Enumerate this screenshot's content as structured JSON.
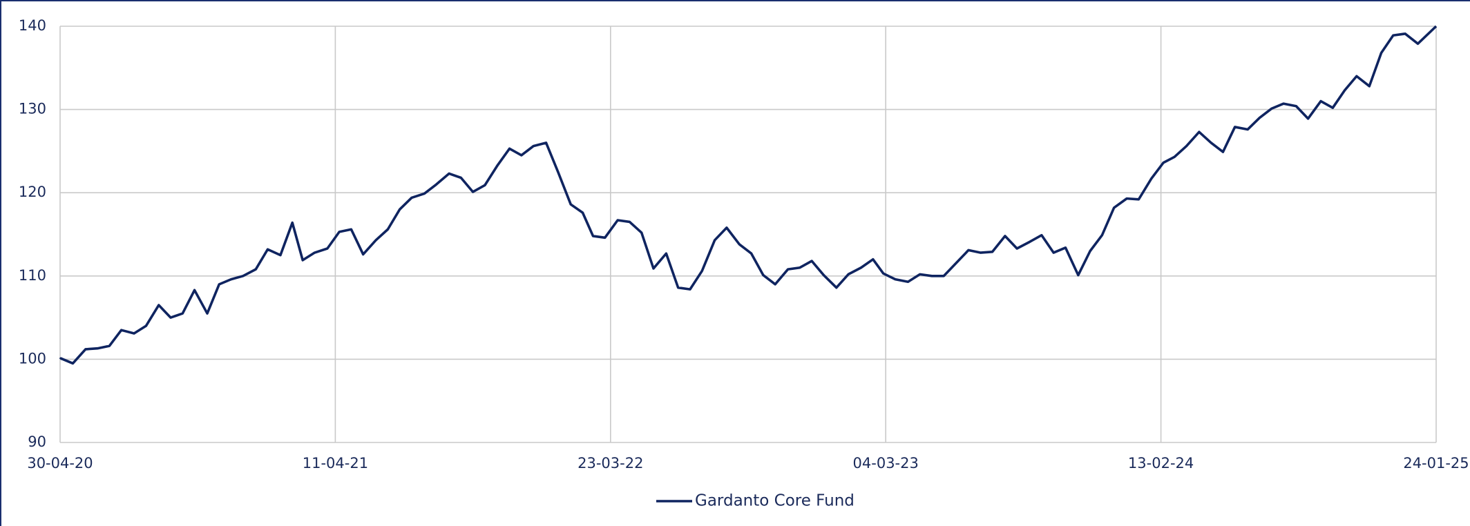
{
  "chart_data": {
    "type": "line",
    "x": [
      "30-04-20",
      "01-05-20",
      "16-05-20",
      "01-06-20",
      "16-06-20",
      "01-07-20",
      "16-07-20",
      "01-08-20",
      "16-08-20",
      "01-09-20",
      "16-09-20",
      "01-10-20",
      "16-10-20",
      "01-11-20",
      "16-11-20",
      "01-12-20",
      "16-12-20",
      "01-01-21",
      "16-01-21",
      "01-02-21",
      "16-02-21",
      "01-03-21",
      "16-03-21",
      "01-04-21",
      "16-04-21",
      "01-05-21",
      "16-05-21",
      "01-06-21",
      "16-06-21",
      "01-07-21",
      "16-07-21",
      "01-08-21",
      "16-08-21",
      "01-09-21",
      "16-09-21",
      "01-10-21",
      "16-10-21",
      "01-11-21",
      "16-11-21",
      "01-12-21",
      "16-12-21",
      "01-01-22",
      "16-01-22",
      "01-02-22",
      "16-02-22",
      "01-03-22",
      "16-03-22",
      "01-04-22",
      "16-04-22",
      "01-05-22",
      "16-05-22",
      "01-06-22",
      "16-06-22",
      "01-07-22",
      "16-07-22",
      "01-08-22",
      "16-08-22",
      "01-09-22",
      "16-09-22",
      "01-10-22",
      "16-10-22",
      "01-11-22",
      "16-11-22",
      "01-12-22",
      "16-12-22",
      "01-01-23",
      "16-01-23",
      "01-02-23",
      "16-02-23",
      "01-03-23",
      "16-03-23",
      "01-04-23",
      "16-04-23",
      "01-05-23",
      "16-05-23",
      "01-06-23",
      "16-06-23",
      "01-07-23",
      "16-07-23",
      "01-08-23",
      "16-08-23",
      "01-09-23",
      "16-09-23",
      "01-10-23",
      "16-10-23",
      "01-11-23",
      "16-11-23",
      "01-12-23",
      "16-12-23",
      "01-01-24",
      "16-01-24",
      "01-02-24",
      "16-02-24",
      "01-03-24",
      "16-03-24",
      "01-04-24",
      "16-04-24",
      "01-05-24",
      "16-05-24",
      "01-06-24",
      "16-06-24",
      "01-07-24",
      "16-07-24",
      "01-08-24",
      "16-08-24",
      "01-09-24",
      "16-09-24",
      "01-10-24",
      "16-10-24",
      "01-11-24",
      "16-11-24",
      "01-12-24",
      "16-12-24",
      "01-01-25",
      "24-01-25"
    ],
    "series": [
      {
        "name": "Gardanto Core Fund",
        "color": "#0f2460",
        "values": [
          100,
          100.1,
          99.5,
          101.2,
          101.3,
          101.6,
          103.5,
          103.1,
          104,
          106.5,
          105,
          105.5,
          108.3,
          105.5,
          109,
          109.6,
          110,
          110.8,
          113.2,
          112.5,
          116.4,
          111.9,
          112.8,
          113.3,
          115.3,
          115.6,
          112.6,
          114.3,
          115.6,
          118,
          119.4,
          119.9,
          121,
          122.3,
          121.8,
          120.1,
          120.9,
          123.3,
          125.3,
          124.5,
          125.6,
          126,
          122.5,
          118.6,
          117.6,
          114.8,
          114.6,
          116.7,
          116.5,
          115.2,
          110.9,
          112.7,
          108.6,
          108.4,
          110.6,
          114.3,
          115.8,
          113.8,
          112.7,
          110.1,
          109,
          110.8,
          111,
          111.8,
          110.1,
          108.6,
          110.2,
          111,
          112,
          110.3,
          109.6,
          109.3,
          110.2,
          110,
          110,
          111.6,
          113.1,
          112.8,
          112.9,
          114.8,
          113.3,
          114.1,
          114.9,
          112.8,
          113.4,
          110.1,
          113,
          114.9,
          118.2,
          119.3,
          119.2,
          121.7,
          123.6,
          124.3,
          125.6,
          127.3,
          126,
          124.9,
          127.9,
          127.6,
          129,
          130.1,
          130.7,
          130.4,
          128.9,
          131,
          130.2,
          132.3,
          134,
          132.8,
          136.8,
          138.9,
          139.1,
          137.9,
          140
        ]
      }
    ],
    "xlim": [
      "30-04-20",
      "24-01-25"
    ],
    "xticks": [
      "30-04-20",
      "11-04-21",
      "23-03-22",
      "04-03-23",
      "13-02-24",
      "24-01-25"
    ],
    "ylim": [
      90,
      140
    ],
    "yticks": [
      90,
      100,
      110,
      120,
      130,
      140
    ],
    "grid": true,
    "legend": "bottom"
  }
}
